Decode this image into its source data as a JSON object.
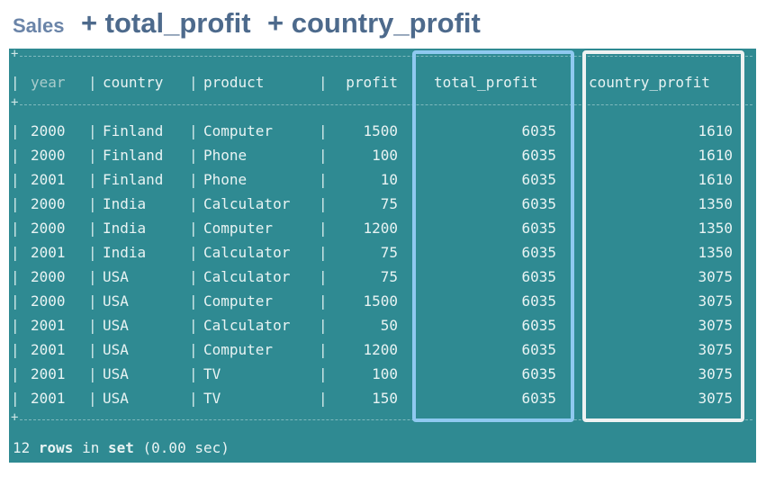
{
  "heading": {
    "table_name": "Sales",
    "add_total": "+ total_profit",
    "add_country": "+ country_profit"
  },
  "table": {
    "columns": {
      "year": "year",
      "country": "country",
      "product": "product",
      "profit": "profit",
      "total_profit": "total_profit",
      "country_profit": "country_profit"
    },
    "rows": [
      {
        "year": "2000",
        "country": "Finland",
        "product": "Computer",
        "profit": "1500",
        "total_profit": "6035",
        "country_profit": "1610"
      },
      {
        "year": "2000",
        "country": "Finland",
        "product": "Phone",
        "profit": "100",
        "total_profit": "6035",
        "country_profit": "1610"
      },
      {
        "year": "2001",
        "country": "Finland",
        "product": "Phone",
        "profit": "10",
        "total_profit": "6035",
        "country_profit": "1610"
      },
      {
        "year": "2000",
        "country": "India",
        "product": "Calculator",
        "profit": "75",
        "total_profit": "6035",
        "country_profit": "1350"
      },
      {
        "year": "2000",
        "country": "India",
        "product": "Computer",
        "profit": "1200",
        "total_profit": "6035",
        "country_profit": "1350"
      },
      {
        "year": "2001",
        "country": "India",
        "product": "Calculator",
        "profit": "75",
        "total_profit": "6035",
        "country_profit": "1350"
      },
      {
        "year": "2000",
        "country": "USA",
        "product": "Calculator",
        "profit": "75",
        "total_profit": "6035",
        "country_profit": "3075"
      },
      {
        "year": "2000",
        "country": "USA",
        "product": "Computer",
        "profit": "1500",
        "total_profit": "6035",
        "country_profit": "3075"
      },
      {
        "year": "2001",
        "country": "USA",
        "product": "Calculator",
        "profit": "50",
        "total_profit": "6035",
        "country_profit": "3075"
      },
      {
        "year": "2001",
        "country": "USA",
        "product": "Computer",
        "profit": "1200",
        "total_profit": "6035",
        "country_profit": "3075"
      },
      {
        "year": "2001",
        "country": "USA",
        "product": "TV",
        "profit": "100",
        "total_profit": "6035",
        "country_profit": "3075"
      },
      {
        "year": "2001",
        "country": "USA",
        "product": "TV",
        "profit": "150",
        "total_profit": "6035",
        "country_profit": "3075"
      }
    ]
  },
  "footer": {
    "count": "12",
    "rows_word": "rows",
    "in_word": "in",
    "set_word": "set",
    "timing": "(0.00 sec)"
  },
  "colors": {
    "terminal_bg": "#2f8a92",
    "total_highlight": "#8fc9f0",
    "country_highlight": "#eef2f2",
    "heading_text": "#4d6a8c"
  }
}
